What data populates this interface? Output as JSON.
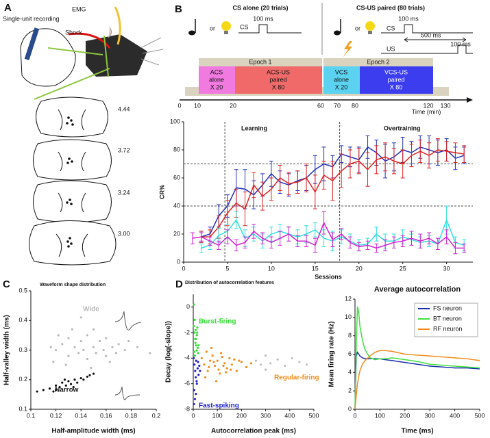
{
  "panel_a": {
    "label": "A",
    "recording": "Single-unit recording",
    "emg": "EMG",
    "shock": "Shock",
    "sections": [
      "4.44",
      "3.72",
      "3.24",
      "3.00"
    ]
  },
  "panel_b": {
    "label": "B",
    "cs_alone": "CS alone (20 trials)",
    "cs_us": "CS-US paired (80 trials)",
    "or": "or",
    "cs": "CS",
    "us": "US",
    "ms100": "100 ms",
    "ms500": "500 ms",
    "epoch1": "Epoch 1",
    "epoch2": "Epoch 2",
    "acs_alone": [
      "ACS",
      "alone",
      "X 20"
    ],
    "acs_us": [
      "ACS-US",
      "paired",
      "X 80"
    ],
    "vcs_alone": [
      "VCS",
      "alone",
      "X 20"
    ],
    "vcs_us": [
      "VCS-US",
      "paired",
      "X 80"
    ],
    "timeline_ticks": [
      0,
      10,
      20,
      60,
      70,
      80,
      120,
      130
    ],
    "time_label": "Time (min)",
    "learning": "Learning",
    "overtraining": "Overtraining"
  },
  "panel_c": {
    "label": "C"
  },
  "panel_d": {
    "label": "D"
  },
  "chart_data": [
    {
      "type": "line",
      "xlabel": "Sessions",
      "ylabel": "CR%",
      "xlim": [
        0,
        33
      ],
      "ylim": [
        0,
        100
      ],
      "xticks": [
        0,
        5,
        10,
        15,
        20,
        25,
        30
      ],
      "yticks": [
        0,
        20,
        40,
        60,
        80,
        100
      ],
      "reference_lines": {
        "y": [
          40,
          70
        ],
        "x": [
          4.7,
          17.8
        ]
      },
      "x": [
        1,
        2,
        3,
        4,
        5,
        6,
        7,
        8,
        9,
        10,
        11,
        12,
        13,
        14,
        15,
        16,
        17,
        18,
        19,
        20,
        21,
        22,
        23,
        24,
        25,
        26,
        27,
        28,
        29,
        30,
        31,
        32
      ],
      "series": [
        {
          "color": "#1f2fb8",
          "values": [
            null,
            18,
            20,
            33,
            40,
            53,
            52,
            48,
            55,
            63,
            57,
            55,
            58,
            60,
            66,
            70,
            68,
            77,
            75,
            73,
            82,
            78,
            72,
            75,
            80,
            78,
            82,
            80,
            78,
            80,
            74,
            76
          ],
          "errors": [
            null,
            4,
            5,
            8,
            8,
            13,
            14,
            10,
            8,
            9,
            8,
            8,
            7,
            9,
            10,
            12,
            8,
            6,
            7,
            9,
            8,
            9,
            12,
            10,
            9,
            8,
            8,
            10,
            9,
            8,
            8,
            6
          ]
        },
        {
          "color": "#e02020",
          "values": [
            null,
            18,
            18,
            25,
            35,
            42,
            38,
            55,
            47,
            52,
            60,
            56,
            57,
            60,
            50,
            62,
            58,
            65,
            70,
            72,
            66,
            73,
            75,
            72,
            70,
            76,
            79,
            76,
            80,
            79,
            78,
            77
          ],
          "errors": [
            null,
            4,
            5,
            8,
            9,
            10,
            12,
            9,
            10,
            8,
            9,
            8,
            8,
            10,
            12,
            10,
            14,
            12,
            10,
            9,
            12,
            10,
            10,
            9,
            10,
            8,
            8,
            9,
            8,
            7,
            7,
            6
          ]
        },
        {
          "color": "#30dede",
          "values": [
            null,
            10,
            12,
            19,
            22,
            30,
            17,
            20,
            15,
            20,
            22,
            20,
            18,
            20,
            23,
            17,
            15,
            18,
            15,
            12,
            13,
            20,
            15,
            15,
            18,
            16,
            14,
            15,
            13,
            30,
            14,
            12
          ],
          "errors": [
            null,
            3,
            3,
            5,
            5,
            6,
            6,
            5,
            5,
            5,
            5,
            5,
            5,
            6,
            5,
            6,
            7,
            5,
            5,
            4,
            4,
            5,
            5,
            5,
            5,
            4,
            4,
            4,
            4,
            10,
            4,
            4
          ]
        },
        {
          "color": "#d020d0",
          "values": [
            17,
            18,
            15,
            12,
            18,
            12,
            14,
            22,
            17,
            14,
            17,
            20,
            15,
            15,
            12,
            28,
            16,
            20,
            14,
            11,
            12,
            10,
            12,
            14,
            15,
            17,
            15,
            17,
            13,
            18,
            10,
            10
          ],
          "errors": [
            4,
            3,
            3,
            3,
            5,
            4,
            4,
            5,
            4,
            4,
            5,
            5,
            4,
            4,
            5,
            8,
            5,
            4,
            4,
            3,
            3,
            3,
            4,
            4,
            4,
            5,
            5,
            4,
            4,
            5,
            4,
            3
          ]
        }
      ]
    },
    {
      "type": "scatter",
      "title": "Waveform shape distribution",
      "xlabel": "Half-amplitude width (ms)",
      "ylabel": "Half-valley width (ms)",
      "xlim": [
        0.1,
        0.2
      ],
      "ylim": [
        0.1,
        0.5
      ],
      "xticks": [
        0.1,
        0.12,
        0.14,
        0.16,
        0.18,
        0.2
      ],
      "yticks": [
        0.1,
        0.2,
        0.3,
        0.4,
        0.5
      ],
      "series": [
        {
          "name": "Wide",
          "color": "#b8b8b8",
          "x": [
            0.12,
            0.125,
            0.13,
            0.13,
            0.135,
            0.138,
            0.14,
            0.142,
            0.145,
            0.145,
            0.15,
            0.152,
            0.155,
            0.158,
            0.16,
            0.16,
            0.165,
            0.168,
            0.17,
            0.175,
            0.118,
            0.122,
            0.128,
            0.133,
            0.148,
            0.15,
            0.163,
            0.178,
            0.185,
            0.195,
            0.14,
            0.116
          ],
          "values": [
            0.3,
            0.32,
            0.28,
            0.34,
            0.31,
            0.29,
            0.33,
            0.3,
            0.27,
            0.35,
            0.31,
            0.29,
            0.33,
            0.3,
            0.28,
            0.34,
            0.31,
            0.29,
            0.32,
            0.3,
            0.26,
            0.35,
            0.25,
            0.37,
            0.24,
            0.37,
            0.26,
            0.33,
            0.31,
            0.29,
            0.41,
            0.31
          ]
        },
        {
          "name": "Narrow",
          "color": "#111111",
          "x": [
            0.105,
            0.11,
            0.115,
            0.118,
            0.12,
            0.123,
            0.125,
            0.128,
            0.13,
            0.132,
            0.135,
            0.137,
            0.14,
            0.142,
            0.145,
            0.147,
            0.12,
            0.127,
            0.134,
            0.15
          ],
          "values": [
            0.16,
            0.165,
            0.17,
            0.16,
            0.18,
            0.175,
            0.19,
            0.18,
            0.195,
            0.185,
            0.2,
            0.19,
            0.205,
            0.2,
            0.21,
            0.215,
            0.165,
            0.2,
            0.175,
            0.22
          ]
        }
      ]
    },
    {
      "type": "scatter",
      "title": "Distribution of autocorrelation features",
      "xlabel": "Autocorrelation peak (ms)",
      "ylabel": "Decay (log(-slope))",
      "xlim": [
        0,
        500
      ],
      "ylim": [
        -8,
        1
      ],
      "xticks": [
        0,
        100,
        200,
        300,
        400,
        500
      ],
      "yticks": [
        0,
        -2,
        -4,
        -6,
        -8
      ],
      "series": [
        {
          "name": "Burst-firing",
          "color": "#33dd33",
          "x": [
            2,
            5,
            8,
            10,
            12,
            15,
            18,
            20,
            3,
            6,
            9,
            14,
            17,
            22,
            4,
            11,
            16,
            7
          ],
          "values": [
            -1.5,
            -2,
            -2.5,
            -1.8,
            -3,
            -2.2,
            -3.2,
            -3.6,
            0.2,
            -1,
            -2.8,
            -3.4,
            -1.6,
            -3,
            -3.5,
            -2.5,
            -2,
            -3.8
          ]
        },
        {
          "name": "Fast-spiking",
          "color": "#2222cc",
          "x": [
            2,
            5,
            8,
            10,
            12,
            15,
            18,
            22,
            25,
            4,
            7,
            14,
            20,
            28,
            3,
            11
          ],
          "values": [
            -4,
            -4.5,
            -5,
            -5.5,
            -4.2,
            -6,
            -4.8,
            -5.3,
            -4.6,
            -6.5,
            -7.2,
            -5.8,
            -4.3,
            -5,
            -7.6,
            -6.8
          ]
        },
        {
          "name": "Regular-firing",
          "color": "#f08c1c",
          "x": [
            35,
            45,
            55,
            60,
            70,
            80,
            90,
            100,
            110,
            120,
            130,
            140,
            150,
            160,
            170,
            180,
            200,
            220,
            240,
            50,
            75,
            95,
            115,
            135,
            155,
            65,
            105,
            125,
            190,
            85
          ],
          "values": [
            -4,
            -4.5,
            -3.5,
            -5,
            -4.2,
            -3.8,
            -4.6,
            -4.2,
            -5.2,
            -3.9,
            -4.4,
            -4.8,
            -4,
            -4.5,
            -4.1,
            -5,
            -4.3,
            -4.7,
            -4.4,
            -5.5,
            -3.2,
            -5.8,
            -3.6,
            -5.1,
            -4.9,
            -4.7,
            -4.9,
            -4.6,
            -4.2,
            -4.3
          ]
        },
        {
          "color": "#bdbdbd",
          "x": [
            260,
            280,
            300,
            320,
            350,
            380,
            410,
            440,
            470,
            300
          ],
          "values": [
            -4.2,
            -4.5,
            -3.8,
            -4.4,
            -4.1,
            -4.6,
            -4,
            -4.3,
            -4.5,
            -4.9
          ]
        }
      ]
    },
    {
      "type": "line",
      "title": "Average autocorrelation",
      "xlabel": "Time (ms)",
      "ylabel": "Mean firing rate (Hz)",
      "xlim": [
        0,
        500
      ],
      "ylim": [
        0,
        12
      ],
      "xticks": [
        0,
        100,
        200,
        300,
        400,
        500
      ],
      "yticks": [
        0,
        2,
        4,
        6,
        8,
        10,
        12
      ],
      "legend": "upper right",
      "x": [
        0,
        5,
        10,
        15,
        20,
        30,
        40,
        60,
        80,
        100,
        120,
        150,
        200,
        250,
        300,
        350,
        400,
        450,
        500
      ],
      "series": [
        {
          "name": "FS neuron",
          "color": "#1a2fa8",
          "values": [
            0,
            5.8,
            6.2,
            6,
            5.8,
            5.6,
            5.5,
            5.5,
            5.5,
            5.5,
            5.4,
            5.3,
            5.1,
            4.9,
            4.7,
            4.6,
            4.5,
            4.5,
            4.4
          ]
        },
        {
          "name": "BT neuron",
          "color": "#3ee03e",
          "values": [
            0,
            7,
            11.2,
            10.5,
            9,
            7.5,
            6.5,
            5.6,
            5.4,
            5.5,
            5.5,
            5.6,
            5.4,
            5.2,
            4.9,
            4.8,
            4.7,
            4.6,
            4.5
          ]
        },
        {
          "name": "RF neuron",
          "color": "#f08c1c",
          "values": [
            0,
            1.5,
            2.8,
            3.6,
            4.2,
            4.9,
            5.3,
            5.8,
            6.2,
            6.4,
            6.4,
            6.3,
            6,
            5.9,
            5.8,
            5.7,
            5.6,
            5.5,
            5.3
          ]
        }
      ]
    }
  ]
}
